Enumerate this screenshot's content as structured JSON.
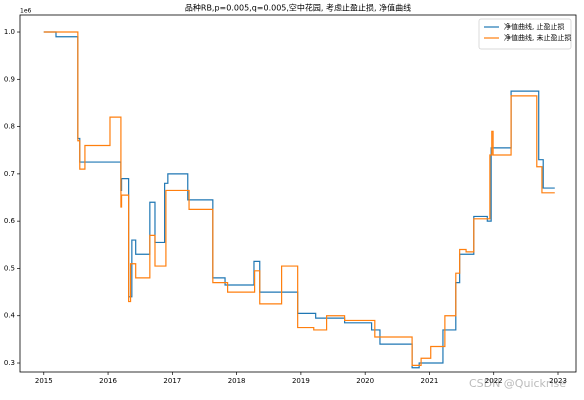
{
  "chart_data": {
    "type": "step",
    "title": "品种RB,p=0.005,q=0.005,空中花园, 考虑止盈止损, 净值曲线",
    "y_offset_label": "1e6",
    "watermark": "CSDN @Quickrise",
    "legend": "upper right",
    "xlim": [
      2014.63,
      2023.28
    ],
    "xticks": [
      2015,
      2016,
      2017,
      2018,
      2019,
      2020,
      2021,
      2022,
      2023
    ],
    "ylim": [
      0.281,
      1.036
    ],
    "yticks": [
      0.3,
      0.4,
      0.5,
      0.6,
      0.7,
      0.8,
      0.9,
      {
        "value": 1.0,
        "label": "1.0"
      }
    ],
    "series": [
      {
        "name": "净值曲线, 止盈止损",
        "color": "#1f77b4",
        "x": [
          2015.0,
          2015.19,
          2015.53,
          2015.56,
          2016.2,
          2016.21,
          2016.32,
          2016.37,
          2016.43,
          2016.65,
          2016.73,
          2016.88,
          2016.93,
          2017.24,
          2017.63,
          2017.82,
          2018.27,
          2018.36,
          2018.95,
          2019.23,
          2019.68,
          2020.1,
          2020.23,
          2020.73,
          2020.84,
          2021.21,
          2021.41,
          2021.47,
          2021.69,
          2021.9,
          2021.96,
          2022.27,
          2022.7,
          2022.77,
          2022.95
        ],
        "values": [
          1.0,
          0.99,
          0.775,
          0.725,
          0.665,
          0.69,
          0.44,
          0.56,
          0.53,
          0.64,
          0.555,
          0.68,
          0.7,
          0.645,
          0.48,
          0.465,
          0.515,
          0.45,
          0.405,
          0.395,
          0.385,
          0.37,
          0.34,
          0.29,
          0.3,
          0.37,
          0.47,
          0.53,
          0.61,
          0.6,
          0.755,
          0.875,
          0.73,
          0.67,
          0.67
        ]
      },
      {
        "name": "净值曲线, 未止盈止损",
        "color": "#ff7f0e",
        "x": [
          2015.0,
          2015.53,
          2015.56,
          2015.64,
          2016.03,
          2016.2,
          2016.21,
          2016.32,
          2016.35,
          2016.43,
          2016.65,
          2016.73,
          2016.9,
          2017.26,
          2017.63,
          2017.86,
          2018.28,
          2018.36,
          2018.7,
          2018.95,
          2019.2,
          2019.4,
          2019.68,
          2020.15,
          2020.73,
          2020.87,
          2021.02,
          2021.24,
          2021.41,
          2021.47,
          2021.57,
          2021.69,
          2021.94,
          2021.97,
          2021.99,
          2022.27,
          2022.67,
          2022.75,
          2022.95
        ],
        "values": [
          1.0,
          0.77,
          0.71,
          0.76,
          0.82,
          0.63,
          0.655,
          0.43,
          0.51,
          0.48,
          0.57,
          0.505,
          0.665,
          0.625,
          0.47,
          0.45,
          0.495,
          0.425,
          0.505,
          0.375,
          0.37,
          0.4,
          0.39,
          0.355,
          0.295,
          0.31,
          0.335,
          0.4,
          0.49,
          0.54,
          0.535,
          0.605,
          0.74,
          0.79,
          0.74,
          0.865,
          0.715,
          0.66,
          0.66
        ]
      }
    ]
  }
}
